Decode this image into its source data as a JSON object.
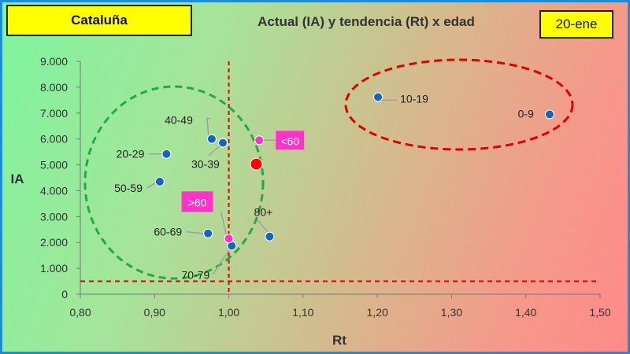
{
  "header": {
    "region": "Cataluña",
    "date": "20-ene"
  },
  "chart_data": {
    "type": "scatter",
    "title": "Actual (IA) y tendencia (Rt) x edad",
    "xlabel": "Rt",
    "ylabel": "IA",
    "xlim": [
      0.8,
      1.5
    ],
    "ylim": [
      0,
      9000
    ],
    "x_ticks": [
      "0,80",
      "0,90",
      "1,00",
      "1,10",
      "1,20",
      "1,30",
      "1,40",
      "1,50"
    ],
    "y_ticks": [
      "0",
      "1.000",
      "2.000",
      "3.000",
      "4.000",
      "5.000",
      "6.000",
      "7.000",
      "8.000",
      "9.000"
    ],
    "grid": false,
    "reference_lines": {
      "x": 1.0,
      "y": 500
    },
    "age_groups": [
      {
        "label": "0-9",
        "x": 1.432,
        "y": 6950
      },
      {
        "label": "10-19",
        "x": 1.201,
        "y": 7620
      },
      {
        "label": "20-29",
        "x": 0.916,
        "y": 5420
      },
      {
        "label": "30-39",
        "x": 0.992,
        "y": 5850
      },
      {
        "label": "40-49",
        "x": 0.977,
        "y": 6000
      },
      {
        "label": "50-59",
        "x": 0.907,
        "y": 4350
      },
      {
        "label": "60-69",
        "x": 0.972,
        "y": 2350
      },
      {
        "label": "70-79",
        "x": 1.004,
        "y": 1870
      },
      {
        "label": "80+",
        "x": 1.055,
        "y": 2230
      }
    ],
    "highlight_groups": [
      {
        "label": "<60",
        "x": 1.041,
        "y": 5950
      },
      {
        "label": ">60",
        "x": 1.0,
        "y": 2150
      }
    ],
    "total": {
      "x": 1.037,
      "y": 5030
    },
    "colors": {
      "age_point": "#1565c0",
      "highlight_point": "#ff33cc",
      "total_point": "#ff0000",
      "reference_line": "#e00000",
      "green_cluster": "#22aa44",
      "red_cluster": "#e00000",
      "label_box": "#ffff00"
    }
  }
}
